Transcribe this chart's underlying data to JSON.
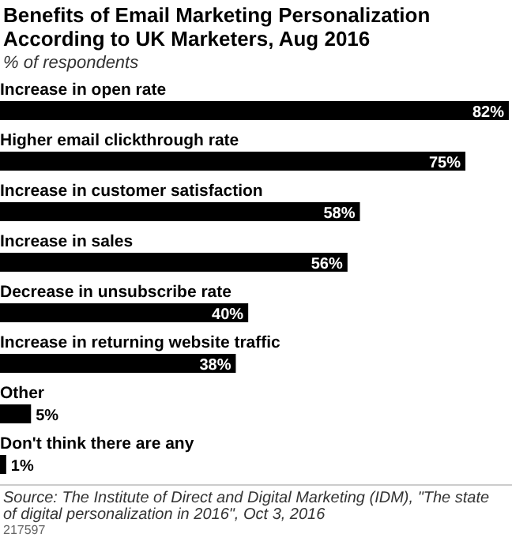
{
  "chart_data": {
    "type": "bar",
    "orientation": "horizontal",
    "title": "Benefits of Email Marketing Personalization According to UK Marketers, Aug 2016",
    "subtitle": "% of respondents",
    "categories": [
      "Increase in open rate",
      "Higher email clickthrough rate",
      "Increase in customer satisfaction",
      "Increase in sales",
      "Decrease in unsubscribe rate",
      "Increase in returning website traffic",
      "Other",
      "Don't think there are any"
    ],
    "values": [
      82,
      75,
      58,
      56,
      40,
      38,
      5,
      1
    ],
    "value_labels": [
      "82%",
      "75%",
      "58%",
      "56%",
      "40%",
      "38%",
      "5%",
      "1%"
    ],
    "color": "#000000",
    "annotations": [
      "Source: The Institute of Direct and Digital Marketing (IDM), \"The state of digital personalization in 2016\", Oct 3, 2016",
      "217597"
    ]
  }
}
